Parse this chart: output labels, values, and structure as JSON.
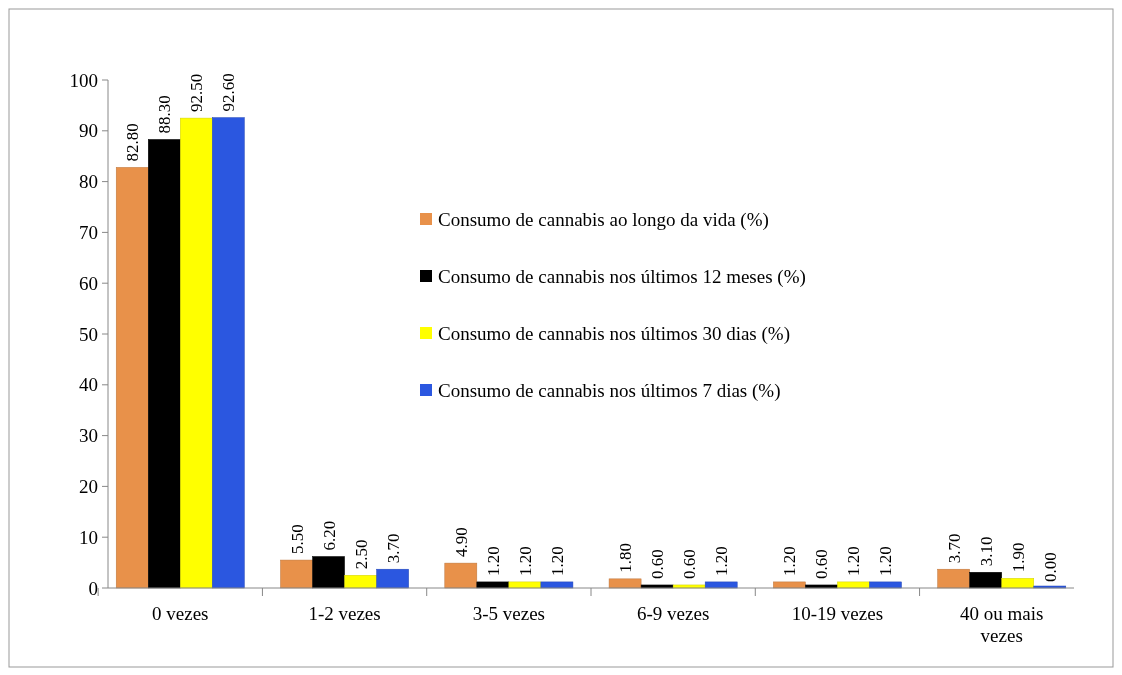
{
  "chart_data": {
    "type": "bar",
    "categories": [
      "0 vezes",
      "1-2 vezes",
      "3-5 vezes",
      "6-9 vezes",
      "10-19 vezes",
      "40 ou mais vezes"
    ],
    "series": [
      {
        "name": "Consumo de cannabis ao longo da vida (%)",
        "color": "#e8914a",
        "values": [
          82.8,
          5.5,
          4.9,
          1.8,
          1.2,
          3.7
        ],
        "value_labels": [
          "82.80",
          "5.50",
          "4.90",
          "1.80",
          "1.20",
          "3.70"
        ]
      },
      {
        "name": "Consumo de cannabis nos últimos 12 meses (%)",
        "color": "#000000",
        "values": [
          88.3,
          6.2,
          1.2,
          0.6,
          0.6,
          3.1
        ],
        "value_labels": [
          "88.30",
          "6.20",
          "1.20",
          "0.60",
          "0.60",
          "3.10"
        ]
      },
      {
        "name": "Consumo de cannabis nos últimos 30 dias (%)",
        "color": "#ffff00",
        "values": [
          92.5,
          2.5,
          1.2,
          0.6,
          1.2,
          1.9
        ],
        "value_labels": [
          "92.50",
          "2.50",
          "1.20",
          "0.60",
          "1.20",
          "1.90"
        ]
      },
      {
        "name": "Consumo de cannabis nos últimos 7 dias (%)",
        "color": "#2b57e0",
        "values": [
          92.6,
          3.7,
          1.2,
          1.2,
          1.2,
          0
        ],
        "value_labels": [
          "92.60",
          "3.70",
          "1.20",
          "1.20",
          "1.20",
          "0.00"
        ]
      }
    ],
    "ylim": [
      0,
      100
    ],
    "yticks": [
      0,
      10,
      20,
      30,
      40,
      50,
      60,
      70,
      80,
      90,
      100
    ],
    "legend": "right"
  }
}
